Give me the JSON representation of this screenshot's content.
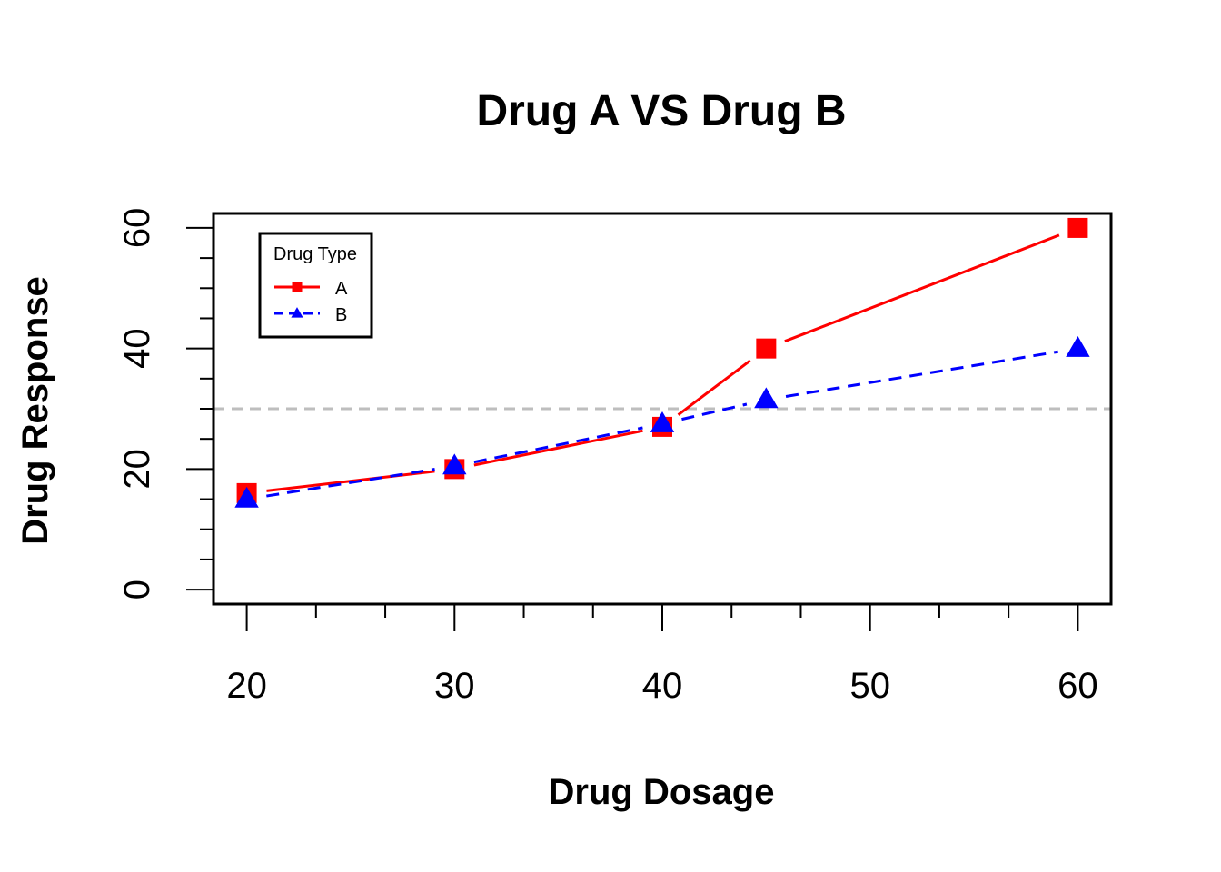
{
  "chart_data": {
    "type": "line",
    "title": "Drug A VS Drug B",
    "xlabel": "Drug Dosage",
    "ylabel": "Drug Response",
    "x": [
      20,
      30,
      40,
      45,
      60
    ],
    "xlim": [
      18.4,
      61.6
    ],
    "ylim": [
      -2.4,
      62.4
    ],
    "x_ticks": [
      20,
      30,
      40,
      50,
      60
    ],
    "x_tick_labels": [
      "20",
      "30",
      "40",
      "50",
      "60"
    ],
    "y_ticks": [
      0,
      20,
      40,
      60
    ],
    "y_tick_labels": [
      "0",
      "20",
      "40",
      "60"
    ],
    "reference_line": {
      "y": 30,
      "style": "dashed",
      "color": "#bebebe"
    },
    "series": [
      {
        "name": "A",
        "values": [
          16,
          20,
          27,
          40,
          60
        ],
        "color": "#ff0000",
        "marker": "square",
        "line": "solid"
      },
      {
        "name": "B",
        "values": [
          15,
          20.5,
          27.5,
          31.5,
          40
        ],
        "color": "#0000ff",
        "marker": "triangle",
        "line": "dashed"
      }
    ],
    "legend": {
      "title": "Drug Type",
      "position": "top-left"
    },
    "grid": false
  }
}
